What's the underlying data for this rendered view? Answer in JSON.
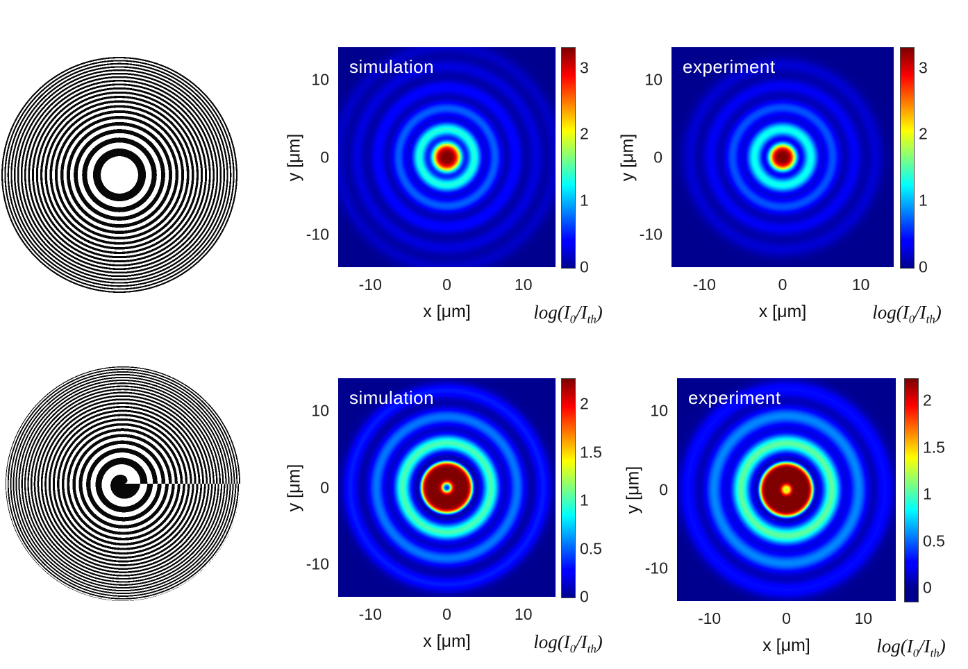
{
  "figure": {
    "background": "#ffffff",
    "heatmap_background": "#00008f",
    "title_color": "#ffffff",
    "colormap": "jet"
  },
  "chart_data": [
    {
      "type": "heatmap",
      "name": "fresnel-zone-plate",
      "kind": "binary_zone_plate",
      "zones": 40,
      "charge": 0,
      "first_zone": "white",
      "description": "Fresnel zone plate: concentric black/white rings, radii proportional to sqrt(n)"
    },
    {
      "type": "heatmap",
      "panel": "top-middle",
      "title": "simulation",
      "xlabel": "x [μm]",
      "ylabel": "y [μm]",
      "xlim": [
        -14.2,
        14.2
      ],
      "ylim": [
        -14.2,
        14.2
      ],
      "xticks": [
        -10,
        0,
        10
      ],
      "yticks": [
        10,
        0,
        -10
      ],
      "colorbar": {
        "ticks": [
          3,
          2,
          1,
          0
        ],
        "bar_range": [
          0,
          3.31
        ],
        "caxis": [
          0,
          3.31
        ],
        "label_pre": "log(I",
        "label_sub1": "0",
        "label_mid": "/I",
        "label_sub2": "th",
        "label_post": ")"
      },
      "field": {
        "core": {
          "amp": 3.31,
          "r0": 0,
          "w": 1.9,
          "p": 4
        },
        "dot": {
          "amp": 0,
          "w": 1
        },
        "rings": [
          {
            "r": 3.6,
            "a": 1.35,
            "w": 0.95
          },
          {
            "r": 6.3,
            "a": 0.72,
            "w": 0.95
          },
          {
            "r": 9.0,
            "a": 0.4,
            "w": 0.95
          },
          {
            "r": 11.7,
            "a": 0.26,
            "w": 0.95
          },
          {
            "r": 14.2,
            "a": 0.18,
            "w": 0.95
          }
        ]
      }
    },
    {
      "type": "heatmap",
      "panel": "top-right",
      "title": "experiment",
      "xlabel": "x [μm]",
      "ylabel": "y [μm]",
      "xlim": [
        -14.2,
        14.2
      ],
      "ylim": [
        -14.2,
        14.2
      ],
      "xticks": [
        -10,
        0,
        10
      ],
      "yticks": [
        10,
        0,
        -10
      ],
      "colorbar": {
        "ticks": [
          3,
          2,
          1,
          0
        ],
        "bar_range": [
          0,
          3.31
        ],
        "caxis": [
          0,
          3.31
        ],
        "label_pre": "log(I",
        "label_sub1": "0",
        "label_mid": "/I",
        "label_sub2": "th",
        "label_post": ")"
      },
      "field": {
        "core": {
          "amp": 3.31,
          "r0": 0,
          "w": 1.75,
          "p": 4
        },
        "dot": {
          "amp": 0,
          "w": 1
        },
        "rings": [
          {
            "r": 3.6,
            "a": 1.3,
            "w": 1.0
          },
          {
            "r": 6.4,
            "a": 0.68,
            "w": 1.0
          },
          {
            "r": 9.2,
            "a": 0.34,
            "w": 1.0
          },
          {
            "r": 11.9,
            "a": 0.22,
            "w": 1.0
          }
        ]
      }
    },
    {
      "type": "heatmap",
      "name": "spiral-zone-plate",
      "kind": "binary_zone_plate",
      "zones": 46,
      "charge": 1,
      "first_zone": "black",
      "description": "Spiral (vortex) zone plate with topological charge 1"
    },
    {
      "type": "heatmap",
      "panel": "bottom-middle",
      "title": "simulation",
      "xlabel": "x [μm]",
      "ylabel": "y [μm]",
      "xlim": [
        -14.2,
        14.2
      ],
      "ylim": [
        -14.2,
        14.2
      ],
      "xticks": [
        -10,
        0,
        10
      ],
      "yticks": [
        10,
        0,
        -10
      ],
      "colorbar": {
        "ticks": [
          2,
          1.5,
          1,
          0.5,
          0
        ],
        "bar_range": [
          0,
          2.27
        ],
        "caxis": [
          0,
          2.27
        ],
        "label_pre": "log(I",
        "label_sub1": "0",
        "label_mid": "/I",
        "label_sub2": "th",
        "label_post": ")"
      },
      "field": {
        "core": {
          "amp": 2.27,
          "r0": 1.9,
          "w": 1.5,
          "p": 6
        },
        "dot": {
          "amp": 0.35,
          "w": 0.25
        },
        "rings": [
          {
            "r": 5.8,
            "a": 1.02,
            "w": 1.1
          },
          {
            "r": 9.2,
            "a": 0.55,
            "w": 1.1
          },
          {
            "r": 12.6,
            "a": 0.34,
            "w": 1.0
          }
        ]
      }
    },
    {
      "type": "heatmap",
      "panel": "bottom-right",
      "title": "experiment",
      "xlabel": "x [μm]",
      "ylabel": "y [μm]",
      "xlim": [
        -14.2,
        14.2
      ],
      "ylim": [
        -14.2,
        14.2
      ],
      "xticks": [
        -10,
        0,
        10
      ],
      "yticks": [
        10,
        0,
        -10
      ],
      "colorbar": {
        "ticks": [
          2,
          1.5,
          1,
          0.5,
          0
        ],
        "bar_range": [
          -0.14,
          2.24
        ],
        "caxis": [
          0,
          2.24
        ],
        "label_pre": "log(I",
        "label_sub1": "0",
        "label_mid": "/I",
        "label_sub2": "th",
        "label_post": ")"
      },
      "field": {
        "core": {
          "amp": 2.3,
          "r0": 1.9,
          "w": 1.6,
          "p": 6
        },
        "dot": {
          "amp": 1.1,
          "w": 0.35
        },
        "rings": [
          {
            "r": 5.9,
            "a": 1.05,
            "w": 1.2
          },
          {
            "r": 9.4,
            "a": 0.58,
            "w": 1.2
          },
          {
            "r": 12.8,
            "a": 0.3,
            "w": 1.1
          }
        ]
      }
    }
  ]
}
